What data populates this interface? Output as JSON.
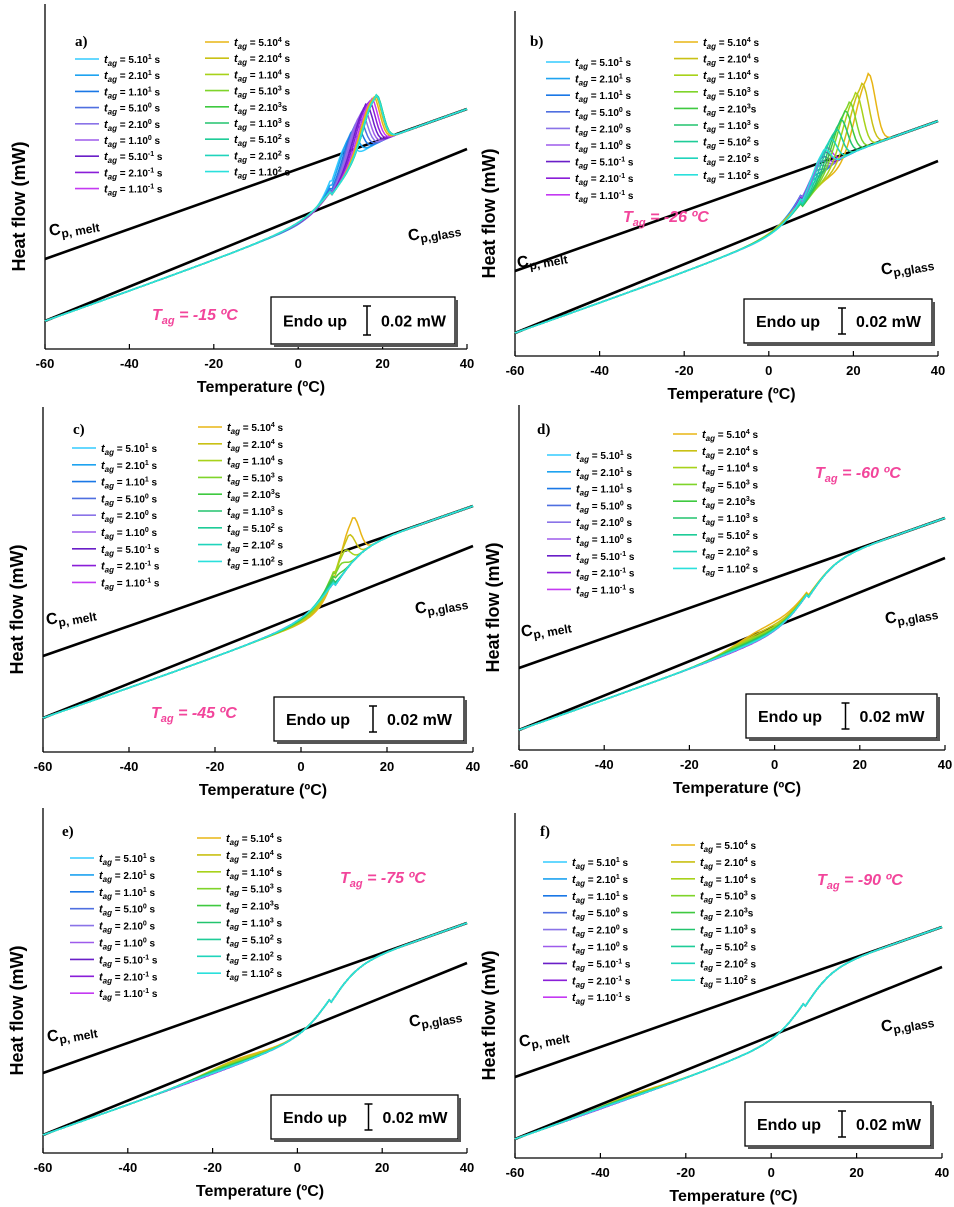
{
  "figure_text": {
    "ylabel": "Heat flow (mW)",
    "xlabel": "Temperature (ºC)",
    "cp_melt_main": "C",
    "cp_melt_sub": "p, melt",
    "cp_glass_main": "C",
    "cp_glass_sub": "p,glass",
    "endo_label": "Endo up",
    "scale_label": "0.02 mW",
    "xticks": [
      "-60",
      "-40",
      "-20",
      "0",
      "20",
      "40"
    ]
  },
  "legend": {
    "var_main": "t",
    "var_sub": "ag",
    "entries": [
      {
        "mantissa": "= 5.10",
        "exponent": "1",
        "unit": " s",
        "color": "#33CCFF"
      },
      {
        "mantissa": "= 2.10",
        "exponent": "1",
        "unit": " s",
        "color": "#1FA3F0"
      },
      {
        "mantissa": "= 1.10",
        "exponent": "1",
        "unit": " s",
        "color": "#1A78E6"
      },
      {
        "mantissa": "= 5.10",
        "exponent": "0",
        "unit": " s",
        "color": "#4F6FE0"
      },
      {
        "mantissa": "= 2.10",
        "exponent": "0",
        "unit": " s",
        "color": "#8A73E8"
      },
      {
        "mantissa": "= 1.10",
        "exponent": "0",
        "unit": " s",
        "color": "#9E5BEB"
      },
      {
        "mantissa": "= 5.10",
        "exponent": "-1",
        "unit": " s",
        "color": "#6A1FC8"
      },
      {
        "mantissa": "= 2.10",
        "exponent": "-1",
        "unit": " s",
        "color": "#8A1ED8"
      },
      {
        "mantissa": "= 1.10",
        "exponent": "-1",
        "unit": " s",
        "color": "#C43AF2"
      },
      {
        "mantissa": "= 5.10",
        "exponent": "4",
        "unit": " s",
        "color": "#E8B515"
      },
      {
        "mantissa": "= 2.10",
        "exponent": "4",
        "unit": " s",
        "color": "#C9C115"
      },
      {
        "mantissa": "= 1.10",
        "exponent": "4",
        "unit": " s",
        "color": "#A8D21A"
      },
      {
        "mantissa": "= 5.10",
        "exponent": "3",
        "unit": " s",
        "color": "#7FD42A"
      },
      {
        "mantissa": "= 2.10",
        "exponent": "3",
        "unit": "s",
        "color": "#3FC940"
      },
      {
        "mantissa": "= 1.10",
        "exponent": "3",
        "unit": " s",
        "color": "#22C46E"
      },
      {
        "mantissa": "= 5.10",
        "exponent": "2",
        "unit": " s",
        "color": "#1FCC98"
      },
      {
        "mantissa": "= 2.10",
        "exponent": "2",
        "unit": " s",
        "color": "#20D4BC"
      },
      {
        "mantissa": "= 1.10",
        "exponent": "2",
        "unit": " s",
        "color": "#2BE0DC"
      }
    ]
  },
  "panels": [
    {
      "id": "a",
      "label": "a)",
      "tag_main": "T",
      "tag_sub": "ag",
      "tag_value": " = -15 ºC"
    },
    {
      "id": "b",
      "label": "b)",
      "tag_main": "T",
      "tag_sub": "ag",
      "tag_value": " = -26 ºC"
    },
    {
      "id": "c",
      "label": "c)",
      "tag_main": "T",
      "tag_sub": "ag",
      "tag_value": " = -45 ºC"
    },
    {
      "id": "d",
      "label": "d)",
      "tag_main": "T",
      "tag_sub": "ag",
      "tag_value": " = -60 ºC"
    },
    {
      "id": "e",
      "label": "e)",
      "tag_main": "T",
      "tag_sub": "ag",
      "tag_value": " = -75 ºC"
    },
    {
      "id": "f",
      "label": "f)",
      "tag_main": "T",
      "tag_sub": "ag",
      "tag_value": " = -90 ºC"
    }
  ],
  "chart_data": [
    {
      "type": "line",
      "panel": "a",
      "xlim": [
        -60,
        40
      ],
      "x_tick_values": [
        -60,
        -40,
        -20,
        0,
        20,
        40
      ],
      "y_ticks_labeled": false,
      "peak_temperature_C": [
        11.5,
        12.5,
        13.5,
        14.2,
        14.8,
        15.4,
        16,
        16.6,
        17.2,
        17.7,
        18.1,
        18.3,
        18.4,
        18.4,
        18.4,
        18.4,
        18.3,
        18.3
      ],
      "peak_height_mW": [
        0.043,
        0.05,
        0.056,
        0.062,
        0.068,
        0.072,
        0.076,
        0.079,
        0.08,
        0.081,
        0.081,
        0.081,
        0.081,
        0.081,
        0.081,
        0.081,
        0.081,
        0.081
      ]
    },
    {
      "type": "line",
      "panel": "b",
      "xlim": [
        -60,
        40
      ],
      "x_tick_values": [
        -60,
        -40,
        -20,
        0,
        20,
        40
      ],
      "y_ticks_labeled": false,
      "peak_temperature_C": [
        9,
        10,
        10.5,
        11,
        11.5,
        12,
        12.5,
        13,
        13.5,
        23.5,
        22,
        20.5,
        19,
        18,
        17,
        15.8,
        14.5,
        13
      ],
      "peak_height_mW": [
        0.004,
        0.008,
        0.012,
        0.016,
        0.02,
        0.024,
        0.028,
        0.032,
        0.036,
        0.121,
        0.109,
        0.098,
        0.087,
        0.076,
        0.065,
        0.055,
        0.045,
        0.037
      ]
    },
    {
      "type": "line",
      "panel": "c",
      "xlim": [
        -60,
        40
      ],
      "x_tick_values": [
        -60,
        -40,
        -20,
        0,
        20,
        40
      ],
      "y_ticks_labeled": false,
      "peak_temperature_C": [
        null,
        null,
        null,
        null,
        null,
        null,
        null,
        null,
        null,
        12,
        11,
        10,
        9,
        8,
        7,
        6,
        5,
        4
      ],
      "peak_height_mW": [
        0,
        0,
        0,
        0,
        0,
        0,
        0,
        0,
        0,
        0.073,
        0.052,
        0.035,
        0.022,
        0.012,
        0.006,
        0.003,
        0.001,
        0
      ]
    },
    {
      "type": "line",
      "panel": "d",
      "xlim": [
        -60,
        40
      ],
      "x_tick_values": [
        -60,
        -40,
        -20,
        0,
        20,
        40
      ],
      "y_ticks_labeled": false,
      "lowT_bump_center_C": [
        null,
        null,
        null,
        null,
        null,
        null,
        null,
        null,
        null,
        -3,
        -4,
        -5,
        -6,
        -6,
        -7,
        -7,
        -8,
        -8
      ],
      "lowT_bump_height_mW": [
        0,
        0,
        0,
        0,
        0,
        0,
        0,
        0,
        0,
        0.016,
        0.012,
        0.009,
        0.007,
        0.005,
        0.0035,
        0.0025,
        0.0015,
        0.001
      ]
    },
    {
      "type": "line",
      "panel": "e",
      "xlim": [
        -60,
        40
      ],
      "x_tick_values": [
        -60,
        -40,
        -20,
        0,
        20,
        40
      ],
      "y_ticks_labeled": false,
      "lowT_bump_center_C": [
        null,
        null,
        null,
        null,
        null,
        null,
        null,
        null,
        null,
        -15,
        -16,
        -17,
        -18,
        -19,
        -20,
        -21,
        -22,
        -23
      ],
      "lowT_bump_height_mW": [
        0,
        0,
        0,
        0,
        0,
        0,
        0,
        0,
        0,
        0.009,
        0.0075,
        0.006,
        0.005,
        0.004,
        0.003,
        0.0022,
        0.0015,
        0.001
      ]
    },
    {
      "type": "line",
      "panel": "f",
      "xlim": [
        -60,
        40
      ],
      "x_tick_values": [
        -60,
        -40,
        -20,
        0,
        20,
        40
      ],
      "y_ticks_labeled": false,
      "lowT_bump_center_C": [
        null,
        null,
        null,
        null,
        null,
        null,
        null,
        null,
        null,
        -33,
        -34,
        -35,
        -36,
        -37,
        -38,
        -39,
        -40,
        -41
      ],
      "lowT_bump_height_mW": [
        0,
        0,
        0,
        0,
        0,
        0,
        0,
        0,
        0,
        0.005,
        0.0042,
        0.0035,
        0.003,
        0.0025,
        0.002,
        0.0015,
        0.001,
        0.0007
      ]
    }
  ]
}
